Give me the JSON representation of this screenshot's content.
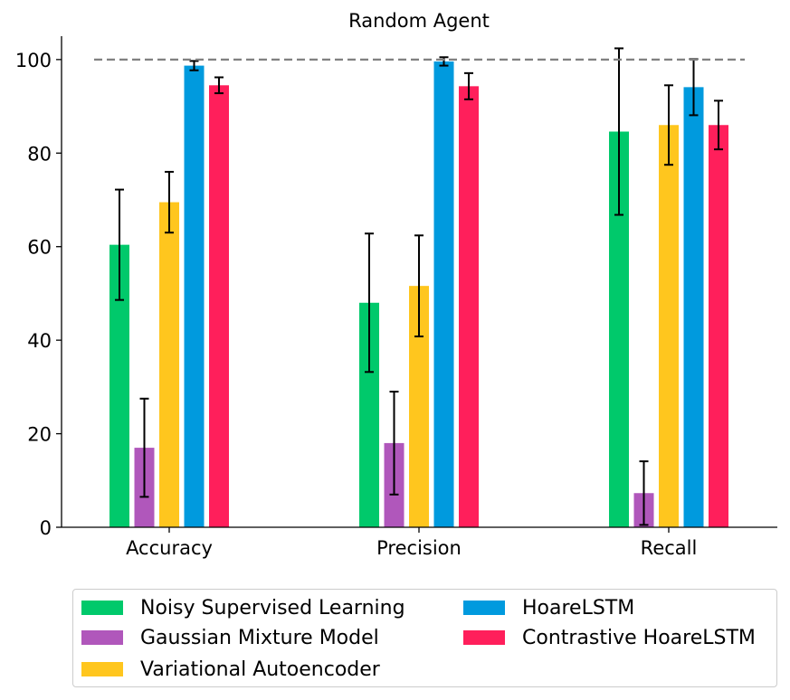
{
  "chart_data": {
    "type": "bar",
    "title": "Random Agent",
    "xlabel": "",
    "ylabel": "",
    "categories": [
      "Accuracy",
      "Precision",
      "Recall"
    ],
    "ylim": [
      0,
      105
    ],
    "yticks": [
      0,
      20,
      40,
      60,
      80,
      100
    ],
    "reference_line": {
      "y": 100,
      "style": "dashed",
      "color": "#808080"
    },
    "grid": false,
    "legend_position": "bottom",
    "series": [
      {
        "name": "Noisy Supervised Learning",
        "color": "#00c96b",
        "values": [
          60.4,
          48.0,
          84.6
        ],
        "errors": [
          11.8,
          14.8,
          17.8
        ]
      },
      {
        "name": "Gaussian Mixture Model",
        "color": "#b057bb",
        "values": [
          17.0,
          18.0,
          7.3
        ],
        "errors": [
          10.5,
          11.0,
          6.8
        ]
      },
      {
        "name": "Variational Autoencoder",
        "color": "#ffc61e",
        "values": [
          69.5,
          51.6,
          86.0
        ],
        "errors": [
          6.5,
          10.8,
          8.5
        ]
      },
      {
        "name": "HoareLSTM",
        "color": "#009ade",
        "values": [
          98.7,
          99.6,
          94.1
        ],
        "errors": [
          1.0,
          0.9,
          6.0
        ]
      },
      {
        "name": "Contrastive HoareLSTM",
        "color": "#ff1f5b",
        "values": [
          94.5,
          94.3,
          86.0
        ],
        "errors": [
          1.7,
          2.8,
          5.2
        ]
      }
    ]
  }
}
